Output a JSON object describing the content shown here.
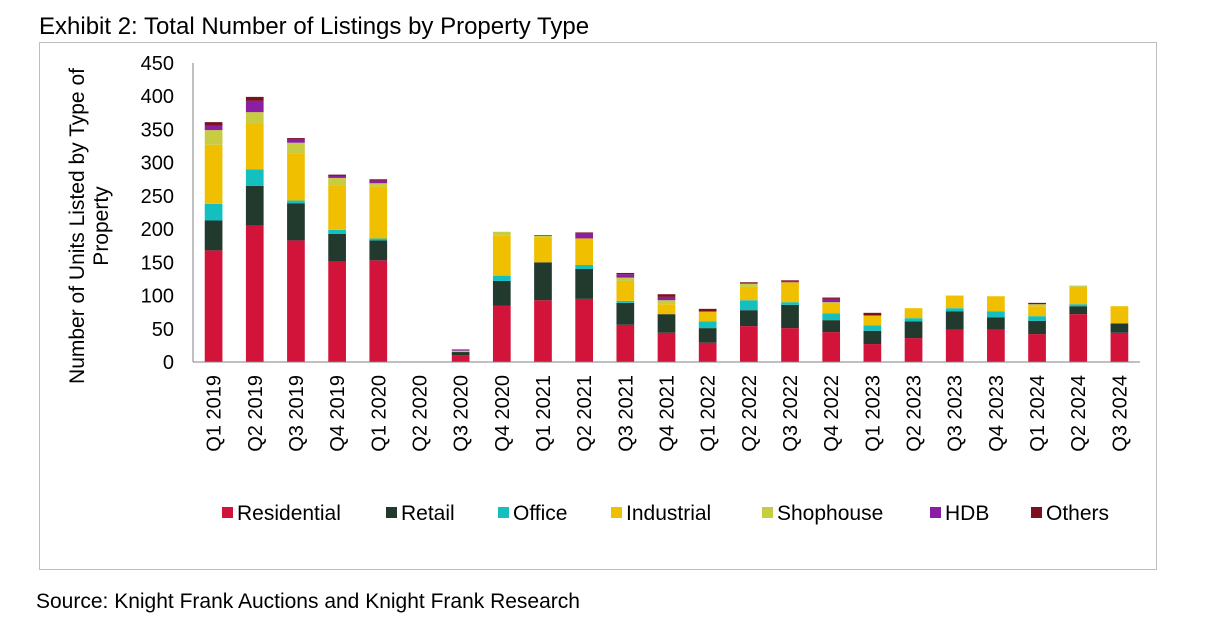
{
  "title": "Exhibit 2: Total Number of Listings by Property Type",
  "source": "Source: Knight Frank Auctions and Knight Frank Research",
  "chart_data": {
    "type": "bar",
    "stacked": true,
    "title": "Exhibit 2: Total Number of Listings by Property Type",
    "xlabel": "",
    "ylabel": "Number of Units Listed by Type of Property",
    "ylim": [
      0,
      450
    ],
    "yticks": [
      0,
      50,
      100,
      150,
      200,
      250,
      300,
      350,
      400,
      450
    ],
    "grid": false,
    "legend_position": "bottom",
    "categories": [
      "Q1 2019",
      "Q2 2019",
      "Q3 2019",
      "Q4 2019",
      "Q1 2020",
      "Q2 2020",
      "Q3 2020",
      "Q4 2020",
      "Q1 2021",
      "Q2 2021",
      "Q3 2021",
      "Q4 2021",
      "Q1 2022",
      "Q2 2022",
      "Q3 2022",
      "Q4 2022",
      "Q1 2023",
      "Q2 2023",
      "Q3 2023",
      "Q4 2023",
      "Q1 2024",
      "Q2 2024",
      "Q3 2024"
    ],
    "series": [
      {
        "name": "Residential",
        "color": "#d2143a",
        "values": [
          168,
          205,
          183,
          151,
          153,
          0,
          10,
          85,
          93,
          95,
          56,
          44,
          29,
          54,
          51,
          45,
          27,
          36,
          49,
          49,
          42,
          72,
          44
        ]
      },
      {
        "name": "Retail",
        "color": "#22392d",
        "values": [
          45,
          60,
          56,
          42,
          30,
          0,
          5,
          37,
          57,
          45,
          33,
          28,
          22,
          24,
          35,
          18,
          20,
          25,
          27,
          18,
          20,
          12,
          14
        ]
      },
      {
        "name": "Office",
        "color": "#14bfbf",
        "values": [
          25,
          25,
          4,
          6,
          3,
          0,
          0,
          8,
          0,
          6,
          3,
          0,
          10,
          15,
          4,
          10,
          8,
          5,
          5,
          9,
          7,
          3,
          0
        ]
      },
      {
        "name": "Industrial",
        "color": "#f0c000",
        "values": [
          89,
          69,
          71,
          66,
          78,
          0,
          0,
          60,
          38,
          40,
          30,
          15,
          15,
          20,
          30,
          15,
          15,
          15,
          19,
          23,
          15,
          26,
          26
        ]
      },
      {
        "name": "Shophouse",
        "color": "#c8cc40",
        "values": [
          22,
          17,
          16,
          12,
          5,
          0,
          2,
          6,
          2,
          0,
          5,
          6,
          0,
          5,
          0,
          2,
          0,
          0,
          0,
          0,
          3,
          2,
          0
        ]
      },
      {
        "name": "HDB",
        "color": "#8a1fa5",
        "values": [
          7,
          17,
          5,
          3,
          4,
          0,
          2,
          0,
          0,
          7,
          5,
          5,
          0,
          0,
          2,
          5,
          0,
          0,
          0,
          0,
          0,
          0,
          0
        ]
      },
      {
        "name": "Others",
        "color": "#7a1020",
        "values": [
          5,
          6,
          2,
          2,
          2,
          0,
          0,
          0,
          1,
          2,
          2,
          4,
          4,
          2,
          1,
          2,
          4,
          0,
          0,
          0,
          2,
          0,
          0
        ]
      }
    ]
  }
}
